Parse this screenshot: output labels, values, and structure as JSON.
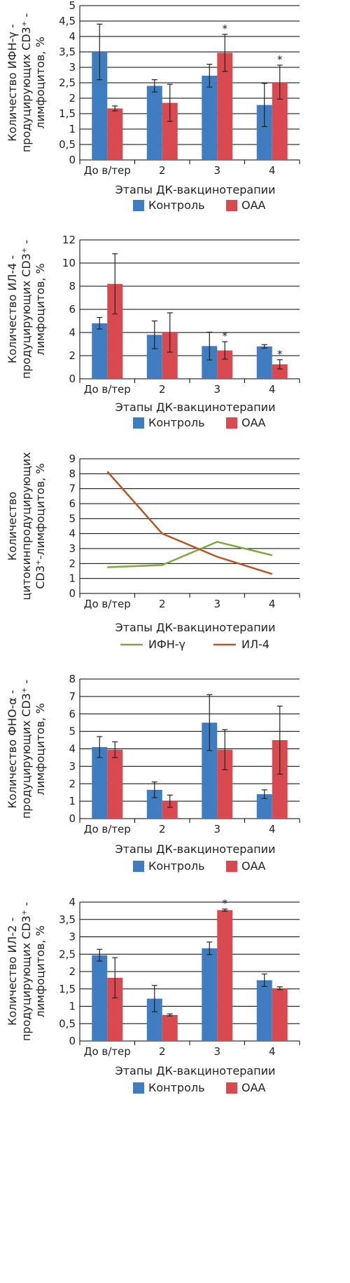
{
  "colors": {
    "control": "#3F7DC0",
    "oaa": "#D94A50",
    "ifn_line": "#7FA640",
    "il4_line": "#B25726",
    "grid": "#000000",
    "text": "#222222"
  },
  "chart_data": [
    {
      "type": "bar",
      "categories": [
        "До в/тер",
        "2",
        "3",
        "4"
      ],
      "ylabel": [
        "Количество ИФН-γ -",
        "продуцирующих CD3⁺ -",
        "лимфоцитов, %"
      ],
      "xlabel": "Этапы ДК-вакцинотерапии",
      "ylim": [
        0,
        5
      ],
      "yticks": [
        "0",
        "0,5",
        "1",
        "1,5",
        "2",
        "2,5",
        "3",
        "3,5",
        "4",
        "4,5",
        "5"
      ],
      "grid": true,
      "legend_position": "bottom",
      "series": [
        {
          "name": "Контроль",
          "color": "control",
          "values": [
            3.5,
            2.4,
            2.73,
            1.78
          ],
          "errors": [
            0.9,
            0.2,
            0.37,
            0.7
          ]
        },
        {
          "name": "ОАА",
          "color": "oaa",
          "values": [
            1.67,
            1.85,
            3.47,
            2.52
          ],
          "errors": [
            0.08,
            0.6,
            0.6,
            0.55
          ],
          "significant": [
            false,
            false,
            true,
            true
          ]
        }
      ]
    },
    {
      "type": "bar",
      "categories": [
        "До в/тер",
        "2",
        "3",
        "4"
      ],
      "ylabel": [
        "Количество ИЛ-4 -",
        "продуцирующих CD3⁺ -",
        "лимфоцитов, %"
      ],
      "xlabel": "Этапы ДК-вакцинотерапии",
      "ylim": [
        0,
        12
      ],
      "yticks": [
        "0",
        "2",
        "4",
        "6",
        "8",
        "10",
        "12"
      ],
      "grid": true,
      "legend_position": "bottom",
      "series": [
        {
          "name": "Контроль",
          "color": "control",
          "values": [
            4.8,
            3.8,
            2.83,
            2.8
          ],
          "errors": [
            0.5,
            1.2,
            1.2,
            0.15
          ]
        },
        {
          "name": "ОАА",
          "color": "oaa",
          "values": [
            8.2,
            4.0,
            2.45,
            1.25
          ],
          "errors": [
            2.6,
            1.7,
            0.75,
            0.4
          ],
          "significant": [
            false,
            false,
            true,
            true
          ]
        }
      ]
    },
    {
      "type": "line",
      "categories": [
        "До в/тер",
        "2",
        "3",
        "4"
      ],
      "ylabel": [
        "Количество",
        "цитокинпродуцирующих",
        "CD3⁺-лимфоцитов, %"
      ],
      "xlabel": "Этапы ДК-вакцинотерапии",
      "ylim": [
        0,
        9
      ],
      "yticks": [
        "0",
        "1",
        "2",
        "3",
        "4",
        "5",
        "6",
        "7",
        "8",
        "9"
      ],
      "grid": true,
      "legend_position": "bottom",
      "series": [
        {
          "name": "ИФН-γ",
          "color": "ifn_line",
          "values": [
            1.75,
            1.9,
            3.45,
            2.55
          ]
        },
        {
          "name": "ИЛ-4",
          "color": "il4_line",
          "values": [
            8.15,
            4.0,
            2.45,
            1.3
          ]
        }
      ]
    },
    {
      "type": "bar",
      "categories": [
        "До в/тер",
        "2",
        "3",
        "4"
      ],
      "ylabel": [
        "Количество ФНО-α -",
        "продуцирующих  CD3⁺ -",
        "лимфоцитов, %"
      ],
      "xlabel": "Этапы ДК-вакцинотерапии",
      "ylim": [
        0,
        8
      ],
      "yticks": [
        "0",
        "1",
        "2",
        "3",
        "4",
        "5",
        "6",
        "7",
        "8"
      ],
      "grid": true,
      "legend_position": "bottom",
      "series": [
        {
          "name": "Контроль",
          "color": "control",
          "values": [
            4.1,
            1.65,
            5.5,
            1.4
          ],
          "errors": [
            0.6,
            0.45,
            1.6,
            0.25
          ]
        },
        {
          "name": "ОАА",
          "color": "oaa",
          "values": [
            3.95,
            1.0,
            3.95,
            4.5
          ],
          "errors": [
            0.45,
            0.35,
            1.15,
            1.95
          ],
          "significant": [
            false,
            false,
            false,
            false
          ]
        }
      ]
    },
    {
      "type": "bar",
      "categories": [
        "До в/тер",
        "2",
        "3",
        "4"
      ],
      "ylabel": [
        "Количество ИЛ-2 -",
        "продуцирующих CD3⁺ -",
        "лимфоцитов, %"
      ],
      "xlabel": "Этапы ДК-вакцинотерапии",
      "ylim": [
        0,
        4
      ],
      "yticks": [
        "0",
        "0,5",
        "1",
        "1,5",
        "2",
        "2,5",
        "3",
        "3,5",
        "4"
      ],
      "grid": true,
      "legend_position": "bottom",
      "series": [
        {
          "name": "Контроль",
          "color": "control",
          "values": [
            2.47,
            1.22,
            2.67,
            1.75
          ],
          "errors": [
            0.17,
            0.38,
            0.18,
            0.18
          ]
        },
        {
          "name": "ОАА",
          "color": "oaa",
          "values": [
            1.82,
            0.75,
            3.77,
            1.52
          ],
          "errors": [
            0.58,
            0.03,
            0.03,
            0.04
          ],
          "significant": [
            false,
            false,
            true,
            false
          ]
        }
      ]
    }
  ],
  "significance_mark": "*"
}
